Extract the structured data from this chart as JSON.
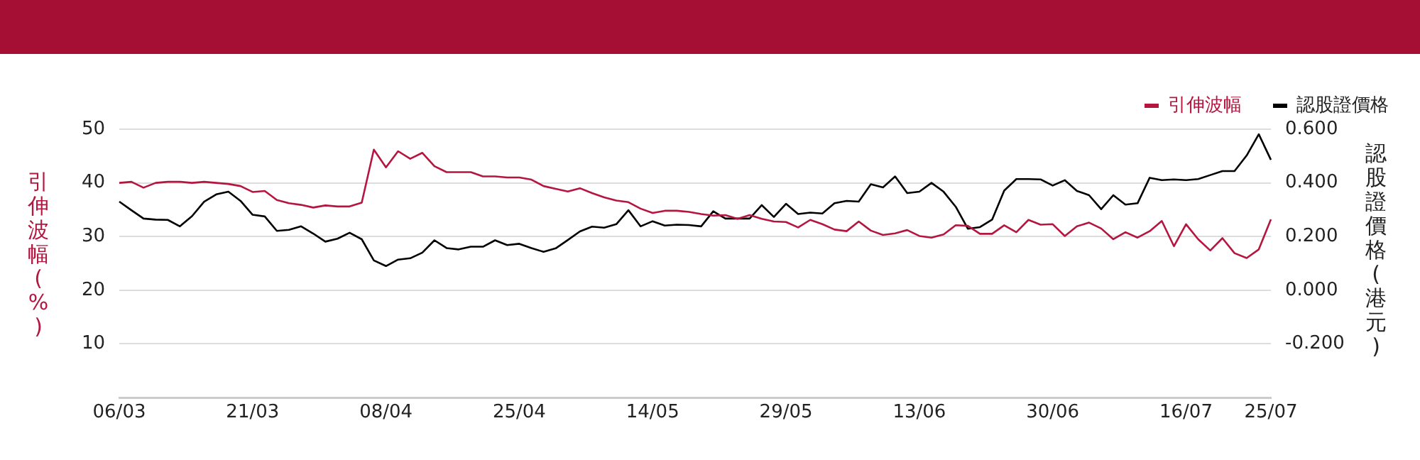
{
  "chart_data": {
    "type": "line",
    "ylabel": "引伸波幅(%)",
    "y2label": "認股證價格(港元)",
    "categories": [
      "06/03",
      null,
      null,
      null,
      null,
      null,
      null,
      null,
      null,
      null,
      null,
      "21/03",
      null,
      null,
      null,
      null,
      null,
      null,
      null,
      null,
      null,
      null,
      "08/04",
      null,
      null,
      null,
      null,
      null,
      null,
      null,
      null,
      null,
      null,
      "25/04",
      null,
      null,
      null,
      null,
      null,
      null,
      null,
      null,
      null,
      null,
      "14/05",
      null,
      null,
      null,
      null,
      null,
      null,
      null,
      null,
      null,
      null,
      "29/05",
      null,
      null,
      null,
      null,
      null,
      null,
      null,
      null,
      null,
      null,
      "13/06",
      null,
      null,
      null,
      null,
      null,
      null,
      null,
      null,
      null,
      null,
      "30/06",
      null,
      null,
      null,
      null,
      null,
      null,
      null,
      null,
      null,
      null,
      "16/07",
      null,
      null,
      null,
      null,
      null,
      null,
      "25/07"
    ],
    "series": [
      {
        "name": "引伸波幅",
        "color": "#b5163f",
        "values": [
          40.0,
          40.2,
          39.1,
          40.0,
          40.2,
          40.2,
          40.0,
          40.2,
          40.0,
          39.8,
          39.4,
          38.3,
          38.5,
          36.8,
          36.2,
          35.9,
          35.4,
          35.8,
          35.6,
          35.6,
          36.3,
          46.2,
          42.9,
          45.9,
          44.5,
          45.6,
          43.1,
          42.0,
          42.0,
          42.0,
          41.2,
          41.2,
          41.0,
          41.0,
          40.6,
          39.4,
          38.9,
          38.4,
          39.0,
          38.1,
          37.3,
          36.7,
          36.4,
          35.2,
          34.4,
          34.8,
          34.8,
          34.6,
          34.2,
          33.9,
          34.0,
          33.3,
          34.0,
          33.3,
          32.8,
          32.7,
          31.7,
          33.1,
          32.3,
          31.3,
          31.0,
          32.8,
          31.1,
          30.3,
          30.6,
          31.2,
          30.1,
          29.8,
          30.4,
          32.1,
          32.0,
          30.5,
          30.5,
          32.1,
          30.8,
          33.1,
          32.2,
          32.3,
          30.1,
          31.9,
          32.6,
          31.5,
          29.5,
          30.8,
          29.8,
          31.0,
          32.9,
          28.2,
          32.3,
          29.5,
          27.4,
          29.7,
          26.9,
          26.0,
          27.6,
          33.2
        ]
      },
      {
        "name": "認股證價格",
        "color": "#000000",
        "axis": "y2",
        "values": [
          0.33,
          0.298,
          0.267,
          0.263,
          0.262,
          0.238,
          0.276,
          0.33,
          0.357,
          0.367,
          0.333,
          0.281,
          0.275,
          0.221,
          0.225,
          0.238,
          0.211,
          0.181,
          0.192,
          0.214,
          0.19,
          0.111,
          0.09,
          0.114,
          0.119,
          0.14,
          0.186,
          0.157,
          0.152,
          0.162,
          0.162,
          0.186,
          0.168,
          0.173,
          0.157,
          0.143,
          0.156,
          0.187,
          0.219,
          0.237,
          0.233,
          0.246,
          0.298,
          0.238,
          0.257,
          0.241,
          0.244,
          0.243,
          0.238,
          0.294,
          0.267,
          0.267,
          0.267,
          0.317,
          0.273,
          0.322,
          0.284,
          0.289,
          0.286,
          0.324,
          0.333,
          0.33,
          0.395,
          0.383,
          0.424,
          0.362,
          0.367,
          0.4,
          0.367,
          0.311,
          0.229,
          0.235,
          0.263,
          0.371,
          0.414,
          0.414,
          0.413,
          0.39,
          0.41,
          0.37,
          0.354,
          0.302,
          0.354,
          0.319,
          0.324,
          0.419,
          0.41,
          0.413,
          0.41,
          0.414,
          0.429,
          0.444,
          0.444,
          0.502,
          0.581,
          0.486
        ]
      }
    ],
    "ylim": [
      0,
      50
    ],
    "yticks": [
      10,
      20,
      30,
      40,
      50
    ],
    "y2lim": [
      -0.4,
      0.6
    ],
    "y2ticks": [
      {
        "value": -0.2,
        "label": "-0.200"
      },
      {
        "value": 0,
        "label": "0.000"
      },
      {
        "value": 0.2,
        "label": "0.200"
      },
      {
        "value": 0.4,
        "label": "0.400"
      },
      {
        "value": 0.6,
        "label": "0.600"
      }
    ],
    "grid": "y",
    "legend": "top right",
    "marker": "none",
    "line_style": "solid"
  }
}
